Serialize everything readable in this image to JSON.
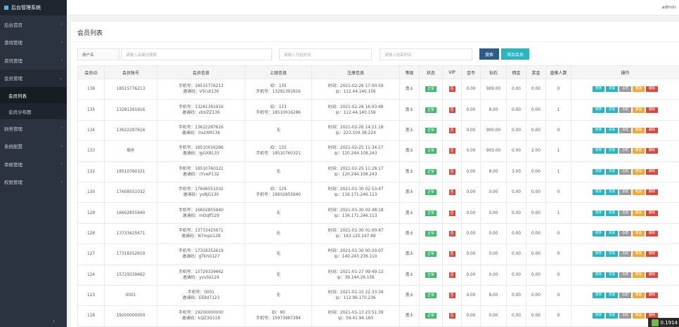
{
  "sidebar": {
    "brand": "后台管理系统",
    "items": [
      {
        "label": "后台首页",
        "chev": "›"
      },
      {
        "label": "游戏管理",
        "chev": "›"
      },
      {
        "label": "资讯管理",
        "chev": "›"
      },
      {
        "label": "会员管理",
        "chev": "⌄"
      },
      {
        "label": "财务管理",
        "chev": "›"
      },
      {
        "label": "系统配置",
        "chev": "›"
      },
      {
        "label": "审核管理",
        "chev": "›"
      },
      {
        "label": "权限管理",
        "chev": "›"
      }
    ],
    "sub_items": [
      {
        "label": "会员列表"
      },
      {
        "label": "会员分布图"
      }
    ],
    "collapse": "‹"
  },
  "topbar": {
    "user": "admin"
  },
  "page": {
    "title": "会员列表"
  },
  "filters": {
    "label": "用户名",
    "keyword_placeholder": "请输入关键词搜索",
    "start_placeholder": "请输入开始时间",
    "end_placeholder": "请输入结束时间",
    "search_label": "搜索",
    "add_label": "添加会员"
  },
  "table": {
    "headers": [
      "会员ID",
      "会员账号",
      "会员信息",
      "上级信息",
      "注册信息",
      "等级",
      "状态",
      "VIP",
      "金币",
      "钻石",
      "佣金",
      "奖金",
      "直推人数",
      "操作"
    ],
    "status_label": "正常",
    "vip_label": "否",
    "actions": [
      "修改",
      "充值",
      "冻结",
      "赠送",
      "删除"
    ],
    "rows": [
      {
        "id": "136",
        "account": "18515776213",
        "info1": "手机号：18515776213",
        "info2": "邀请码：V5cut136",
        "up1": "ID：135",
        "up2": "手机号：13281391916",
        "reg1": "时间：2021-02-26 17:00:59",
        "reg2": "ip：112.44.140.156",
        "level": "勇士",
        "gold": "0.00",
        "diamond": "909.00",
        "comm": "0.00",
        "bonus": "0.00",
        "direct": "0"
      },
      {
        "id": "135",
        "account": "13281391916",
        "info1": "手机号：13281391916",
        "info2": "邀请码：vbVZZ136",
        "up1": "ID：133",
        "up2": "手机号：18510016286",
        "reg1": "时间：2021-02-26 16:03:48",
        "reg2": "ip：112.44.140.156",
        "level": "勇士",
        "gold": "0.00",
        "diamond": "8.00",
        "comm": "0.00",
        "bonus": "0.00",
        "direct": "1"
      },
      {
        "id": "134",
        "account": "13622287616",
        "info1": "手机号：13622287616",
        "info2": "邀请码：0x2XM134",
        "up1": "无",
        "up2": "",
        "reg1": "时间：2021-02-26 14:21:18",
        "reg2": "ip：223.104.38.224",
        "level": "勇士",
        "gold": "0.00",
        "diamond": "900.00",
        "comm": "0.00",
        "bonus": "0.00",
        "direct": "0"
      },
      {
        "id": "133",
        "account": "局外",
        "info1": "手机号：18510016286",
        "info2": "邀请码：lgGXB133",
        "up1": "ID：132",
        "up2": "手机号：18510760321",
        "reg1": "时间：2021-02-25 11:34:17",
        "reg2": "ip：120.244.108.243",
        "level": "勇士",
        "gold": "0.00",
        "diamond": "903.00",
        "comm": "0.00",
        "bonus": "2.00",
        "direct": "1"
      },
      {
        "id": "132",
        "account": "18510760321",
        "info1": "手机号：18510760321",
        "info2": "邀请码：rYvwF132",
        "up1": "无",
        "up2": "",
        "reg1": "时间：2021-02-25 11:28:17",
        "reg2": "ip：120.244.108.243",
        "level": "勇士",
        "gold": "0.00",
        "diamond": "8.00",
        "comm": "3.00",
        "bonus": "0.00",
        "direct": "1"
      },
      {
        "id": "130",
        "account": "17608551032",
        "info1": "手机号：17608551032",
        "info2": "邀请码：ys8JG130",
        "up1": "ID：129",
        "up2": "手机号：16602855940",
        "reg1": "时间：2021-01-30 02:53:47",
        "reg2": "ip：116.171.246.113",
        "level": "勇士",
        "gold": "0.00",
        "diamond": "0.00",
        "comm": "0.00",
        "bonus": "0.00",
        "direct": "0"
      },
      {
        "id": "129",
        "account": "16602855940",
        "info1": "手机号：16602855940",
        "info2": "邀请码：mOqff129",
        "up1": "无",
        "up2": "",
        "reg1": "时间：2021-01-30 02:48:18",
        "reg2": "ip：116.171.246.113",
        "level": "勇士",
        "gold": "0.00",
        "diamond": "0.00",
        "comm": "0.00",
        "bonus": "0.00",
        "direct": "1"
      },
      {
        "id": "128",
        "account": "13733425671",
        "info1": "手机号：13733425671",
        "info2": "邀请码：N7mpn128",
        "up1": "无",
        "up2": "",
        "reg1": "时间：2021-01-30 01:00:47",
        "reg2": "ip：163.125.247.89",
        "level": "勇士",
        "gold": "0.00",
        "diamond": "0.00",
        "comm": "0.00",
        "bonus": "0.00",
        "direct": "0"
      },
      {
        "id": "127",
        "account": "17318352619",
        "info1": "手机号：17318352619",
        "info2": "邀请码：gTkhG127",
        "up1": "无",
        "up2": "",
        "reg1": "时间：2021-01-30 00:20:07",
        "reg2": "ip：140.243.236.110",
        "level": "勇士",
        "gold": "0.00",
        "diamond": "0.00",
        "comm": "0.00",
        "bonus": "0.00",
        "direct": "0"
      },
      {
        "id": "124",
        "account": "15729339662",
        "info1": "手机号：15729339662",
        "info2": "邀请码：yvu5k124",
        "up1": "无",
        "up2": "",
        "reg1": "时间：2021-01-27 09:49:12",
        "reg2": "ip：39.144.29.156",
        "level": "勇士",
        "gold": "0.00",
        "diamond": "0.00",
        "comm": "0.00",
        "bonus": "0.00",
        "direct": "0"
      },
      {
        "id": "123",
        "account": "0001",
        "info1": "手机号：0001",
        "info2": "邀请码：EE8d7123",
        "up1": "无",
        "up2": "",
        "reg1": "时间：2021-01-15 22:33:34",
        "reg2": "ip：112.96.170.236",
        "level": "勇士",
        "gold": "0.00",
        "diamond": "8.00",
        "comm": "0.00",
        "bonus": "0.00",
        "direct": "0"
      },
      {
        "id": "118",
        "account": "19200000000",
        "info1": "手机号：19200000000",
        "info2": "邀请码：kQZ3G118",
        "up1": "ID：80",
        "up2": "手机号：15973887384",
        "reg1": "时间：2021-01-13 23:51:39",
        "reg2": "ip：59.41.94.160",
        "level": "勇士",
        "gold": "0.00",
        "diamond": "0.00",
        "comm": "0.00",
        "bonus": "0.00",
        "direct": "0"
      }
    ]
  },
  "corner": {
    "value": "0.1914"
  }
}
